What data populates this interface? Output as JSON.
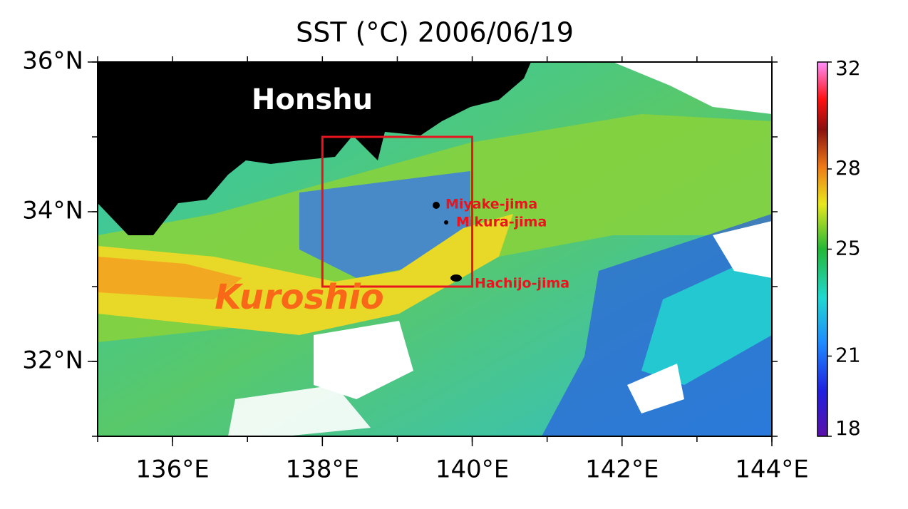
{
  "title": "SST (°C) 2006/06/19",
  "map": {
    "xlim": [
      135,
      144
    ],
    "ylim": [
      31,
      36
    ],
    "xticks": [
      {
        "value": 136,
        "label": "136°E"
      },
      {
        "value": 138,
        "label": "138°E"
      },
      {
        "value": 140,
        "label": "140°E"
      },
      {
        "value": 142,
        "label": "142°E"
      },
      {
        "value": 144,
        "label": "144°E"
      }
    ],
    "yticks": [
      {
        "value": 32,
        "label": "32°N"
      },
      {
        "value": 34,
        "label": "34°N"
      },
      {
        "value": 36,
        "label": "36°N"
      }
    ],
    "region": {
      "lon": [
        138,
        140
      ],
      "lat": [
        33,
        35
      ],
      "color": "#e8141e"
    },
    "labels": [
      "Honshu",
      "Kuroshio",
      "Miyake-jima",
      "Mikura-jima",
      "Hachijo-jima"
    ]
  },
  "colorbar": {
    "lim": [
      18,
      32
    ],
    "ticks": [
      18,
      21,
      25,
      28,
      32
    ]
  }
}
